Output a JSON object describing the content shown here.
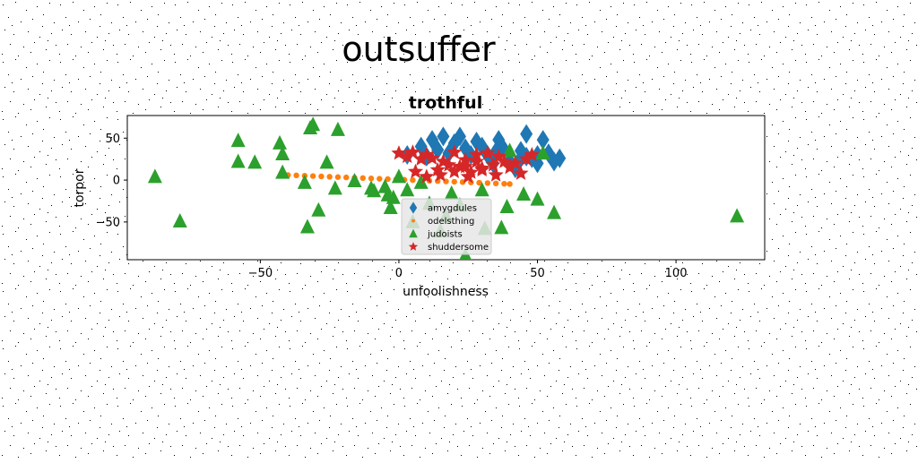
{
  "figure": {
    "suptitle": "outsuffer"
  },
  "chart_data": {
    "type": "scatter",
    "title": "trothful",
    "xlabel": "unfoolishness",
    "ylabel": "torpor",
    "xlim": [
      -98,
      132
    ],
    "ylim": [
      -95,
      77
    ],
    "xticks": [
      -50,
      0,
      50,
      100
    ],
    "yticks": [
      -50,
      0,
      50
    ],
    "xtick_labels": [
      "−50",
      "0",
      "50",
      "100"
    ],
    "ytick_labels": [
      "−50",
      "0",
      "50"
    ],
    "grid": false,
    "legend_position": "lower-center",
    "series": [
      {
        "name": "amygdules",
        "color": "#1f77b4",
        "marker": "diamond",
        "points": [
          [
            3,
            30
          ],
          [
            8,
            40
          ],
          [
            10,
            28
          ],
          [
            12,
            48
          ],
          [
            14,
            36
          ],
          [
            16,
            52
          ],
          [
            18,
            32
          ],
          [
            20,
            44
          ],
          [
            22,
            52
          ],
          [
            24,
            38
          ],
          [
            26,
            30
          ],
          [
            28,
            46
          ],
          [
            30,
            40
          ],
          [
            32,
            30
          ],
          [
            34,
            20
          ],
          [
            36,
            48
          ],
          [
            38,
            36
          ],
          [
            40,
            22
          ],
          [
            42,
            14
          ],
          [
            44,
            35
          ],
          [
            46,
            55
          ],
          [
            48,
            26
          ],
          [
            50,
            30
          ],
          [
            50,
            20
          ],
          [
            52,
            48
          ],
          [
            54,
            32
          ],
          [
            56,
            22
          ],
          [
            58,
            26
          ],
          [
            46,
            28
          ],
          [
            44,
            26
          ],
          [
            35,
            34
          ]
        ]
      },
      {
        "name": "odelsthing",
        "color": "#ff7f0e",
        "marker": "circle",
        "points": [
          [
            -40,
            6
          ],
          [
            -37,
            5.6
          ],
          [
            -34,
            5.2
          ],
          [
            -31,
            4.8
          ],
          [
            -28,
            4.4
          ],
          [
            -25,
            4
          ],
          [
            -22,
            3.6
          ],
          [
            -19,
            3.2
          ],
          [
            -16,
            2.8
          ],
          [
            -13,
            2.4
          ],
          [
            -10,
            2
          ],
          [
            -7,
            1.6
          ],
          [
            -4,
            1.2
          ],
          [
            -1,
            0.8
          ],
          [
            2,
            0.4
          ],
          [
            5,
            0
          ],
          [
            8,
            -0.4
          ],
          [
            11,
            -0.8
          ],
          [
            14,
            -1.2
          ],
          [
            17,
            -1.6
          ],
          [
            20,
            -2
          ],
          [
            23,
            -2.4
          ],
          [
            26,
            -2.8
          ],
          [
            29,
            -3.2
          ],
          [
            32,
            -3.6
          ],
          [
            35,
            -4
          ],
          [
            38,
            -4.4
          ],
          [
            40,
            -4.7
          ]
        ]
      },
      {
        "name": "judoists",
        "color": "#2ca02c",
        "marker": "triangle",
        "points": [
          [
            -88,
            4
          ],
          [
            -79,
            -49
          ],
          [
            -58,
            47
          ],
          [
            -58,
            22
          ],
          [
            -52,
            21
          ],
          [
            -43,
            44
          ],
          [
            -42,
            9
          ],
          [
            -42,
            31
          ],
          [
            -34,
            -3
          ],
          [
            -33,
            -56
          ],
          [
            -32,
            62
          ],
          [
            -31,
            66
          ],
          [
            -29,
            -36
          ],
          [
            -26,
            21
          ],
          [
            -22,
            60
          ],
          [
            -23,
            -10
          ],
          [
            -16,
            -1
          ],
          [
            -10,
            -10
          ],
          [
            -9,
            -13
          ],
          [
            -5,
            -8
          ],
          [
            -4,
            -18
          ],
          [
            -3,
            -33
          ],
          [
            -2,
            -21
          ],
          [
            0,
            4
          ],
          [
            3,
            -12
          ],
          [
            5,
            -50
          ],
          [
            8,
            -3
          ],
          [
            11,
            -28
          ],
          [
            15,
            -61
          ],
          [
            17,
            -43
          ],
          [
            19,
            -16
          ],
          [
            22,
            -30
          ],
          [
            24,
            -90
          ],
          [
            30,
            -12
          ],
          [
            31,
            -58
          ],
          [
            37,
            -57
          ],
          [
            39,
            -32
          ],
          [
            40,
            35
          ],
          [
            45,
            -17
          ],
          [
            50,
            -23
          ],
          [
            52,
            32
          ],
          [
            56,
            -39
          ],
          [
            122,
            -43
          ]
        ]
      },
      {
        "name": "shuddersome",
        "color": "#d62728",
        "marker": "star",
        "points": [
          [
            0,
            32
          ],
          [
            3,
            28
          ],
          [
            5,
            33
          ],
          [
            8,
            25
          ],
          [
            10,
            30
          ],
          [
            12,
            26
          ],
          [
            14,
            12
          ],
          [
            16,
            22
          ],
          [
            18,
            18
          ],
          [
            20,
            33
          ],
          [
            22,
            16
          ],
          [
            24,
            24
          ],
          [
            26,
            9
          ],
          [
            28,
            30
          ],
          [
            30,
            14
          ],
          [
            32,
            32
          ],
          [
            34,
            18
          ],
          [
            36,
            28
          ],
          [
            38,
            22
          ],
          [
            40,
            15
          ],
          [
            42,
            20
          ],
          [
            44,
            8
          ],
          [
            46,
            25
          ],
          [
            48,
            30
          ],
          [
            6,
            10
          ],
          [
            10,
            4
          ],
          [
            15,
            6
          ],
          [
            20,
            10
          ],
          [
            25,
            4
          ],
          [
            30,
            12
          ],
          [
            35,
            6
          ],
          [
            28,
            22
          ],
          [
            24,
            16
          ]
        ]
      }
    ]
  }
}
